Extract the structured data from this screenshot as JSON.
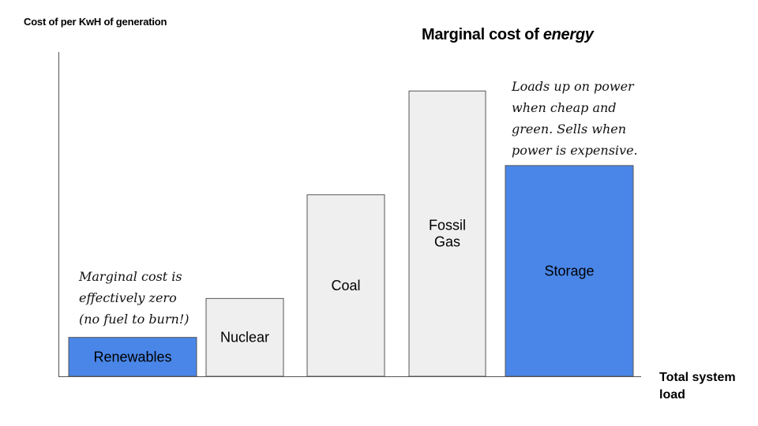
{
  "chart_data": {
    "type": "bar",
    "title_prefix": "Marginal cost of ",
    "title_emphasis": "energy",
    "ylabel": "Cost of per KwH of generation",
    "xlabel": "Total system load",
    "bars": [
      {
        "label": [
          "Renewables"
        ],
        "value": 12,
        "color": "#4a86e8"
      },
      {
        "label": [
          "Nuclear"
        ],
        "value": 24,
        "color": "#efefef"
      },
      {
        "label": [
          "Coal"
        ],
        "value": 56,
        "color": "#efefef"
      },
      {
        "label": [
          "Fossil",
          "Gas"
        ],
        "value": 88,
        "color": "#efefef"
      },
      {
        "label": [
          "Storage"
        ],
        "value": 65,
        "color": "#4a86e8"
      }
    ],
    "ylim": [
      0,
      100
    ],
    "annotations": [
      {
        "target": "Renewables",
        "lines": [
          "Marginal cost is",
          "effectively zero",
          "(no fuel to burn!)"
        ]
      },
      {
        "target": "Storage",
        "lines": [
          "Loads up on power",
          "when cheap and",
          "green. Sells when",
          "power is expensive."
        ]
      }
    ]
  }
}
